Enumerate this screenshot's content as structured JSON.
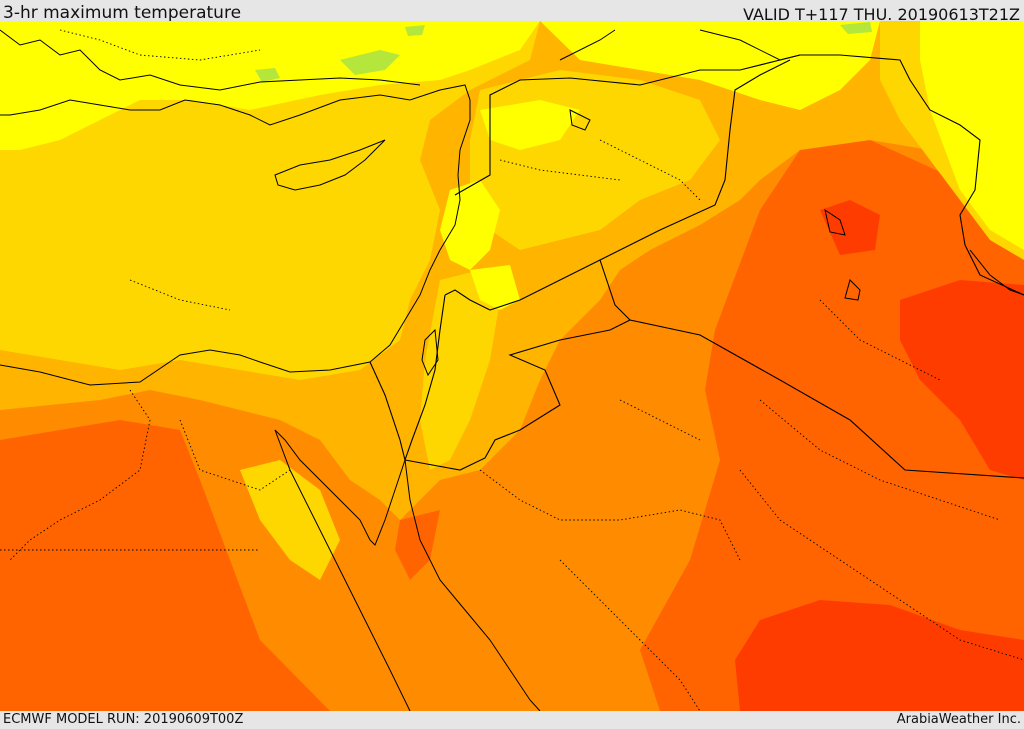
{
  "header": {
    "title": "3-hr maximum temperature",
    "valid": "VALID T+117 THU. 20190613T21Z"
  },
  "footer": {
    "model_run": "ECMWF MODEL RUN: 20190609T00Z",
    "credit": "ArabiaWeather Inc."
  },
  "palette": {
    "light_green": "#b4e63c",
    "yellow": "#ffff00",
    "yellow_orange": "#ffd700",
    "light_orange": "#ffb400",
    "orange": "#ff8c00",
    "dark_orange": "#ff6400",
    "red_orange": "#ff3c00",
    "border_color": "#000000"
  }
}
